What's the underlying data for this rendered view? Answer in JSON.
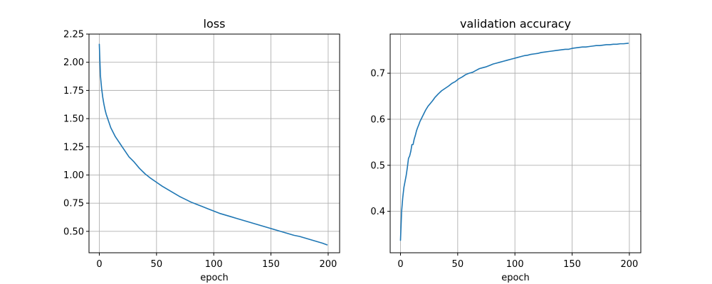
{
  "chart_data": [
    {
      "type": "line",
      "title": "loss",
      "xlabel": "epoch",
      "ylabel": "",
      "xlim": [
        -9,
        210
      ],
      "ylim": [
        0.31,
        2.25
      ],
      "xticks": [
        0,
        50,
        100,
        150,
        200
      ],
      "yticks": [
        0.5,
        0.75,
        1.0,
        1.25,
        1.5,
        1.75,
        2.0,
        2.25
      ],
      "ytick_labels": [
        "0.50",
        "0.75",
        "1.00",
        "1.25",
        "1.50",
        "1.75",
        "2.00",
        "2.25"
      ],
      "grid": true,
      "color": "#1f77b4",
      "series": [
        {
          "x": [
            0,
            1,
            2,
            3,
            4,
            5,
            6,
            7,
            8,
            9,
            10,
            12,
            14,
            16,
            18,
            20,
            22,
            24,
            26,
            28,
            30,
            35,
            40,
            45,
            50,
            55,
            60,
            65,
            70,
            75,
            80,
            85,
            90,
            95,
            100,
            105,
            110,
            115,
            120,
            125,
            130,
            135,
            140,
            145,
            150,
            155,
            160,
            165,
            170,
            175,
            180,
            185,
            190,
            195,
            199
          ],
          "values": [
            2.16,
            1.88,
            1.77,
            1.69,
            1.63,
            1.58,
            1.54,
            1.51,
            1.48,
            1.45,
            1.42,
            1.38,
            1.34,
            1.31,
            1.28,
            1.25,
            1.22,
            1.19,
            1.16,
            1.14,
            1.12,
            1.06,
            1.01,
            0.97,
            0.935,
            0.9,
            0.87,
            0.84,
            0.81,
            0.785,
            0.76,
            0.74,
            0.72,
            0.7,
            0.68,
            0.66,
            0.645,
            0.63,
            0.615,
            0.6,
            0.585,
            0.57,
            0.555,
            0.54,
            0.525,
            0.51,
            0.495,
            0.48,
            0.465,
            0.455,
            0.44,
            0.425,
            0.41,
            0.395,
            0.38
          ]
        }
      ]
    },
    {
      "type": "line",
      "title": "validation accuracy",
      "xlabel": "epoch",
      "ylabel": "",
      "xlim": [
        -9,
        210
      ],
      "ylim": [
        0.31,
        0.785
      ],
      "xticks": [
        0,
        50,
        100,
        150,
        200
      ],
      "yticks": [
        0.4,
        0.5,
        0.6,
        0.7
      ],
      "ytick_labels": [
        "0.4",
        "0.5",
        "0.6",
        "0.7"
      ],
      "grid": true,
      "color": "#1f77b4",
      "series": [
        {
          "x": [
            0,
            1,
            2,
            3,
            4,
            5,
            6,
            7,
            8,
            9,
            10,
            11,
            12,
            13,
            14,
            15,
            16,
            17,
            18,
            19,
            20,
            22,
            24,
            26,
            28,
            30,
            33,
            36,
            39,
            42,
            45,
            48,
            51,
            54,
            57,
            60,
            63,
            66,
            69,
            72,
            75,
            78,
            81,
            84,
            87,
            90,
            93,
            96,
            99,
            102,
            105,
            108,
            111,
            114,
            117,
            120,
            123,
            126,
            129,
            132,
            135,
            138,
            141,
            144,
            147,
            150,
            153,
            156,
            159,
            162,
            165,
            168,
            171,
            174,
            177,
            180,
            183,
            186,
            189,
            192,
            195,
            199
          ],
          "values": [
            0.337,
            0.4,
            0.43,
            0.452,
            0.465,
            0.478,
            0.495,
            0.515,
            0.52,
            0.53,
            0.545,
            0.545,
            0.557,
            0.565,
            0.575,
            0.582,
            0.588,
            0.595,
            0.6,
            0.605,
            0.61,
            0.62,
            0.628,
            0.634,
            0.64,
            0.647,
            0.655,
            0.662,
            0.667,
            0.672,
            0.678,
            0.682,
            0.688,
            0.692,
            0.697,
            0.7,
            0.702,
            0.706,
            0.71,
            0.712,
            0.714,
            0.717,
            0.72,
            0.722,
            0.724,
            0.726,
            0.728,
            0.73,
            0.732,
            0.734,
            0.736,
            0.738,
            0.739,
            0.741,
            0.742,
            0.743,
            0.745,
            0.746,
            0.747,
            0.748,
            0.749,
            0.75,
            0.751,
            0.752,
            0.752,
            0.754,
            0.755,
            0.756,
            0.757,
            0.757,
            0.758,
            0.759,
            0.76,
            0.76,
            0.761,
            0.762,
            0.762,
            0.763,
            0.763,
            0.764,
            0.764,
            0.765
          ]
        }
      ]
    }
  ]
}
